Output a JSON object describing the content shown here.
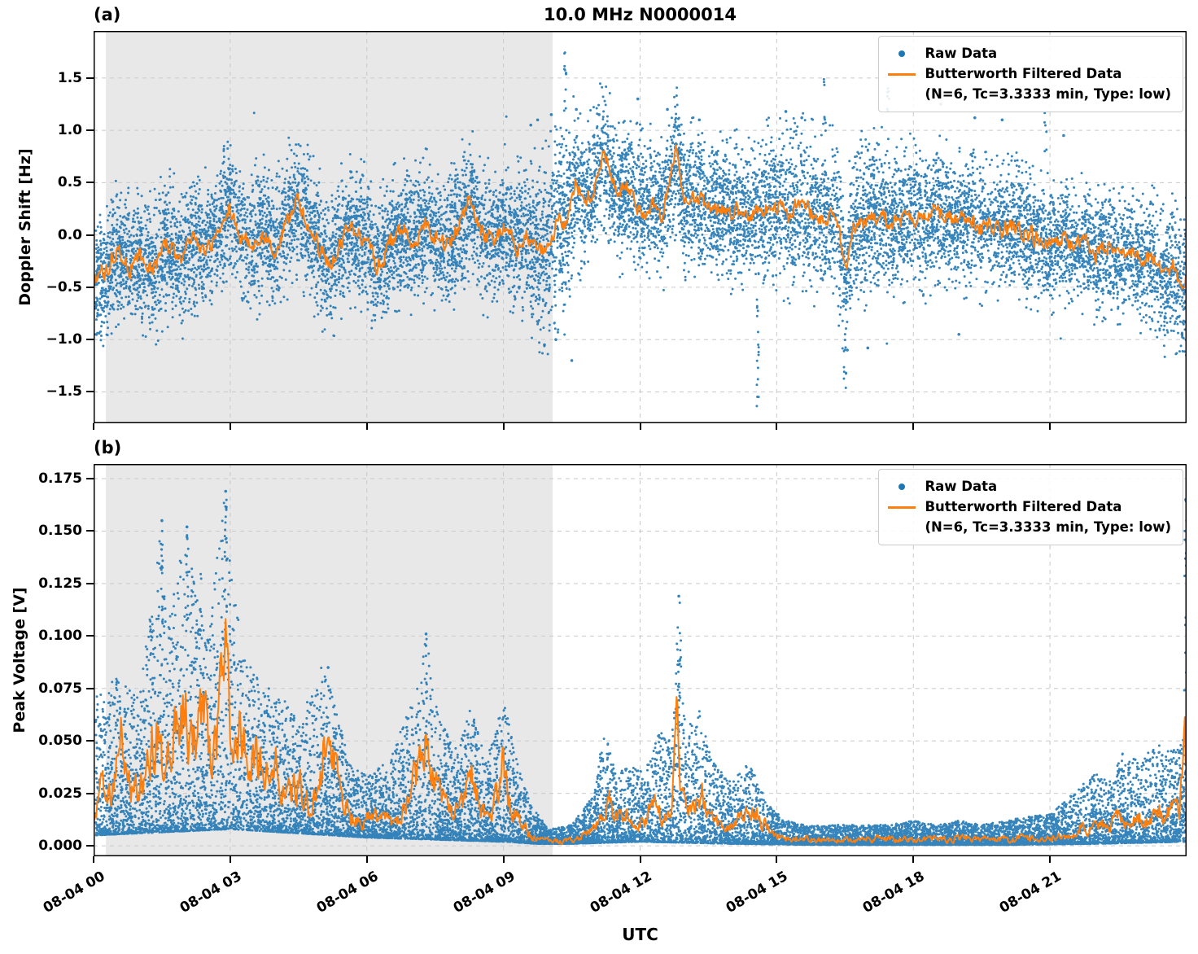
{
  "figure": {
    "xlabel": "UTC",
    "background": "#ffffff",
    "colors": {
      "raw": "#1f77b4",
      "filtered": "#ff7f0e",
      "shade": "#e8e8e8",
      "grid": "#c9c9c9",
      "spine": "#000000"
    }
  },
  "chart_data": [
    {
      "type": "scatter",
      "tag": "(a)",
      "title": "10.0 MHz N0000014",
      "ylabel": "Doppler Shift [Hz]",
      "ylim": [
        -1.8,
        1.95
      ],
      "xlim": [
        0,
        24
      ],
      "yticks": [
        1.5,
        1.0,
        0.5,
        0.0,
        -0.5,
        -1.0,
        -1.5
      ],
      "ytick_labels": [
        "1.5",
        "1.0",
        "0.5",
        "0.0",
        "−0.5",
        "−1.0",
        "−1.5"
      ],
      "xticks": [
        0,
        3,
        6,
        9,
        12,
        15,
        18,
        21
      ],
      "xtick_labels": [
        "08-04 00",
        "08-04 03",
        "08-04 06",
        "08-04 09",
        "08-04 12",
        "08-04 15",
        "08-04 18",
        "08-04 21"
      ],
      "grid": true,
      "shade_x": [
        0.27,
        10.08
      ],
      "legend": {
        "position": "upper right",
        "raw_label": "Raw Data",
        "filtered_label": "Butterworth Filtered Data",
        "filtered_sub": "(N=6, Tc=3.3333 min, Type: low)"
      },
      "filtered": {
        "x": [
          0,
          0.3,
          0.5,
          0.8,
          1.0,
          1.3,
          1.6,
          1.9,
          2.2,
          2.5,
          2.8,
          3.0,
          3.2,
          3.5,
          3.7,
          4.0,
          4.2,
          4.5,
          4.7,
          5.0,
          5.2,
          5.5,
          5.7,
          6.0,
          6.2,
          6.5,
          6.8,
          7.0,
          7.3,
          7.5,
          7.8,
          8.0,
          8.3,
          8.5,
          8.8,
          9.0,
          9.3,
          9.5,
          9.8,
          10.0,
          10.2,
          10.4,
          10.6,
          10.8,
          11.0,
          11.2,
          11.35,
          11.5,
          11.7,
          11.9,
          12.1,
          12.3,
          12.5,
          12.8,
          12.95,
          13.2,
          13.5,
          13.8,
          14.0,
          14.3,
          14.6,
          14.9,
          15.1,
          15.3,
          15.5,
          15.8,
          16.0,
          16.3,
          16.5,
          16.7,
          17.0,
          17.3,
          17.5,
          17.8,
          18.0,
          18.3,
          18.5,
          18.8,
          19.0,
          19.3,
          19.5,
          19.8,
          20.0,
          20.3,
          20.5,
          20.8,
          21.0,
          21.3,
          21.5,
          21.8,
          22.0,
          22.3,
          22.5,
          22.8,
          23.0,
          23.3,
          23.5,
          23.7,
          23.9,
          24.0
        ],
        "y": [
          -0.45,
          -0.35,
          -0.15,
          -0.3,
          -0.2,
          -0.35,
          -0.1,
          -0.25,
          -0.05,
          -0.15,
          0.1,
          0.25,
          0.0,
          -0.1,
          0.05,
          -0.15,
          0.1,
          0.3,
          0.1,
          -0.15,
          -0.3,
          0.0,
          0.05,
          -0.05,
          -0.3,
          -0.1,
          0.05,
          -0.05,
          0.1,
          0.0,
          -0.1,
          0.1,
          0.35,
          0.0,
          -0.05,
          0.1,
          -0.1,
          0.0,
          -0.15,
          -0.1,
          0.15,
          0.1,
          0.5,
          0.3,
          0.45,
          0.8,
          0.55,
          0.35,
          0.45,
          0.3,
          0.25,
          0.3,
          0.2,
          0.8,
          0.3,
          0.35,
          0.3,
          0.25,
          0.2,
          0.25,
          0.2,
          0.3,
          0.25,
          0.2,
          0.3,
          0.2,
          0.15,
          0.2,
          -0.35,
          0.1,
          0.15,
          0.2,
          0.1,
          0.15,
          0.2,
          0.1,
          0.25,
          0.15,
          0.1,
          0.15,
          0.05,
          0.1,
          0.05,
          0.1,
          0.0,
          -0.05,
          -0.1,
          0.0,
          -0.15,
          -0.05,
          -0.2,
          -0.1,
          -0.25,
          -0.15,
          -0.3,
          -0.2,
          -0.45,
          -0.3,
          -0.55,
          -0.35
        ]
      },
      "scatter_model": {
        "kind": "gauss",
        "n": 13000,
        "seed": 12345,
        "spread_x": [
          0,
          2,
          4,
          6,
          8,
          9,
          9.5,
          10,
          10.3,
          10.6,
          11,
          12,
          13,
          14,
          15,
          16,
          17,
          18,
          19,
          20,
          21,
          22,
          23,
          24
        ],
        "spread_y": [
          0.27,
          0.3,
          0.3,
          0.28,
          0.28,
          0.3,
          0.34,
          0.4,
          0.42,
          0.35,
          0.3,
          0.3,
          0.3,
          0.3,
          0.33,
          0.35,
          0.33,
          0.3,
          0.28,
          0.28,
          0.26,
          0.26,
          0.26,
          0.3
        ]
      },
      "columns": [
        {
          "x": 10.36,
          "y0": 0.8,
          "y1": 1.78,
          "n": 14
        },
        {
          "x": 14.58,
          "y0": -0.3,
          "y1": -1.65,
          "n": 18
        },
        {
          "x": 16.5,
          "y0": -0.2,
          "y1": -1.52,
          "n": 14
        },
        {
          "x": 16.05,
          "y0": 0.9,
          "y1": 1.54,
          "n": 8
        },
        {
          "x": 17.45,
          "y0": 0.9,
          "y1": 1.45,
          "n": 8
        },
        {
          "x": 20.9,
          "y0": 0.8,
          "y1": 1.28,
          "n": 6
        }
      ],
      "outliers": [
        [
          11.95,
          1.3
        ],
        [
          12.6,
          1.2
        ],
        [
          13.3,
          1.1
        ],
        [
          15.2,
          1.18
        ],
        [
          15.55,
          1.12
        ],
        [
          18.6,
          1.25
        ],
        [
          19.35,
          1.12
        ],
        [
          19.95,
          1.1
        ],
        [
          21.3,
          0.95
        ],
        [
          9.9,
          -1.05
        ],
        [
          10.15,
          -1.0
        ],
        [
          10.5,
          -1.2
        ],
        [
          17.0,
          -1.08
        ],
        [
          19.0,
          -0.95
        ],
        [
          16.55,
          -1.1
        ],
        [
          23.9,
          -0.95
        ],
        [
          9.6,
          1.05
        ],
        [
          9.75,
          1.1
        ],
        [
          10.05,
          1.15
        ],
        [
          10.6,
          1.2
        ],
        [
          11.1,
          1.15
        ]
      ]
    },
    {
      "type": "scatter",
      "tag": "(b)",
      "title": "",
      "ylabel": "Peak Voltage [V]",
      "ylim": [
        -0.005,
        0.182
      ],
      "xlim": [
        0,
        24
      ],
      "yticks": [
        0.175,
        0.15,
        0.125,
        0.1,
        0.075,
        0.05,
        0.025,
        0.0
      ],
      "ytick_labels": [
        "0.175",
        "0.150",
        "0.125",
        "0.100",
        "0.075",
        "0.050",
        "0.025",
        "0.000"
      ],
      "xticks": [
        0,
        3,
        6,
        9,
        12,
        15,
        18,
        21
      ],
      "xtick_labels": [
        "08-04 00",
        "08-04 03",
        "08-04 06",
        "08-04 09",
        "08-04 12",
        "08-04 15",
        "08-04 18",
        "08-04 21"
      ],
      "grid": true,
      "shade_x": [
        0.27,
        10.08
      ],
      "legend": {
        "position": "upper right",
        "raw_label": "Raw Data",
        "filtered_label": "Butterworth Filtered Data",
        "filtered_sub": "(N=6, Tc=3.3333 min, Type: low)"
      },
      "filtered": {
        "x": [
          0,
          0.2,
          0.4,
          0.6,
          0.8,
          1.0,
          1.2,
          1.4,
          1.5,
          1.7,
          1.9,
          2.0,
          2.1,
          2.3,
          2.4,
          2.5,
          2.7,
          2.9,
          3.0,
          3.1,
          3.2,
          3.4,
          3.5,
          3.7,
          3.9,
          4.1,
          4.3,
          4.5,
          4.7,
          4.9,
          5.1,
          5.3,
          5.5,
          5.7,
          5.9,
          6.1,
          6.3,
          6.5,
          6.7,
          6.9,
          7.1,
          7.3,
          7.5,
          7.7,
          7.9,
          8.1,
          8.3,
          8.5,
          8.7,
          8.9,
          9.0,
          9.1,
          9.3,
          9.5,
          9.7,
          10.0,
          10.3,
          10.6,
          10.8,
          11.0,
          11.2,
          11.35,
          11.5,
          11.7,
          11.9,
          12.1,
          12.3,
          12.5,
          12.7,
          12.8,
          12.9,
          13.0,
          13.2,
          13.35,
          13.5,
          13.7,
          13.9,
          14.1,
          14.3,
          14.5,
          14.7,
          14.9,
          15.1,
          15.3,
          15.5,
          15.8,
          16.1,
          16.4,
          16.7,
          17.0,
          17.3,
          17.6,
          17.9,
          18.2,
          18.5,
          18.8,
          19.1,
          19.4,
          19.7,
          20.0,
          20.3,
          20.6,
          20.9,
          21.2,
          21.5,
          21.7,
          21.9,
          22.1,
          22.3,
          22.5,
          22.7,
          22.9,
          23.1,
          23.3,
          23.5,
          23.7,
          23.85,
          23.95,
          24.0
        ],
        "y": [
          0.013,
          0.03,
          0.02,
          0.05,
          0.03,
          0.025,
          0.04,
          0.055,
          0.04,
          0.045,
          0.065,
          0.075,
          0.05,
          0.055,
          0.075,
          0.045,
          0.05,
          0.105,
          0.06,
          0.045,
          0.055,
          0.04,
          0.05,
          0.035,
          0.045,
          0.03,
          0.025,
          0.03,
          0.02,
          0.025,
          0.05,
          0.04,
          0.018,
          0.015,
          0.012,
          0.015,
          0.012,
          0.015,
          0.012,
          0.025,
          0.035,
          0.05,
          0.03,
          0.02,
          0.015,
          0.02,
          0.035,
          0.018,
          0.012,
          0.03,
          0.04,
          0.02,
          0.015,
          0.008,
          0.003,
          0.002,
          0.002,
          0.003,
          0.005,
          0.008,
          0.015,
          0.022,
          0.012,
          0.018,
          0.01,
          0.012,
          0.022,
          0.012,
          0.02,
          0.06,
          0.03,
          0.015,
          0.018,
          0.025,
          0.015,
          0.01,
          0.008,
          0.01,
          0.015,
          0.02,
          0.012,
          0.006,
          0.004,
          0.003,
          0.004,
          0.003,
          0.0025,
          0.003,
          0.0025,
          0.003,
          0.0035,
          0.003,
          0.0035,
          0.003,
          0.0035,
          0.003,
          0.0035,
          0.003,
          0.0035,
          0.003,
          0.004,
          0.0035,
          0.004,
          0.005,
          0.006,
          0.01,
          0.007,
          0.012,
          0.008,
          0.014,
          0.009,
          0.016,
          0.01,
          0.018,
          0.012,
          0.02,
          0.015,
          0.065,
          0.04
        ]
      },
      "scatter_model": {
        "kind": "skew",
        "n": 15000,
        "seed": 67890,
        "low_x": [
          0,
          3,
          6,
          9,
          9.7,
          10.5,
          12,
          14,
          16,
          20,
          22,
          24
        ],
        "low_y": [
          0.005,
          0.008,
          0.004,
          0.002,
          0.001,
          0.001,
          0.002,
          0.001,
          0.0005,
          0.0005,
          0.001,
          0.002
        ],
        "high_x": [
          0,
          0.5,
          1.0,
          1.4,
          1.5,
          1.6,
          2.0,
          2.2,
          2.5,
          2.9,
          3.1,
          3.3,
          3.6,
          4.0,
          4.5,
          5.0,
          5.3,
          5.6,
          6.0,
          6.5,
          7.0,
          7.3,
          7.6,
          8.0,
          8.3,
          8.6,
          9.0,
          9.3,
          9.6,
          10.0,
          10.5,
          11.0,
          11.2,
          11.5,
          11.8,
          12.1,
          12.4,
          12.7,
          12.85,
          13.0,
          13.3,
          13.6,
          14.0,
          14.4,
          14.8,
          15.2,
          15.6,
          16.0,
          16.5,
          17.0,
          17.5,
          18.0,
          18.5,
          19.0,
          19.5,
          20.0,
          20.5,
          21.0,
          21.5,
          22.0,
          22.3,
          22.6,
          23.0,
          23.3,
          23.6,
          23.9,
          24.0
        ],
        "high_y": [
          0.07,
          0.08,
          0.07,
          0.14,
          0.155,
          0.1,
          0.15,
          0.13,
          0.1,
          0.17,
          0.12,
          0.09,
          0.08,
          0.075,
          0.06,
          0.085,
          0.07,
          0.04,
          0.035,
          0.04,
          0.07,
          0.1,
          0.06,
          0.045,
          0.07,
          0.04,
          0.07,
          0.04,
          0.02,
          0.008,
          0.01,
          0.025,
          0.055,
          0.035,
          0.04,
          0.035,
          0.055,
          0.05,
          0.12,
          0.06,
          0.065,
          0.04,
          0.03,
          0.04,
          0.02,
          0.012,
          0.01,
          0.01,
          0.01,
          0.01,
          0.01,
          0.012,
          0.01,
          0.012,
          0.01,
          0.012,
          0.014,
          0.015,
          0.025,
          0.035,
          0.03,
          0.045,
          0.04,
          0.05,
          0.045,
          0.05,
          0.06
        ]
      },
      "columns": [
        {
          "x": 2.9,
          "y0": 0.1,
          "y1": 0.169,
          "n": 14
        },
        {
          "x": 1.5,
          "y0": 0.09,
          "y1": 0.155,
          "n": 10
        },
        {
          "x": 2.05,
          "y0": 0.09,
          "y1": 0.152,
          "n": 12
        },
        {
          "x": 2.35,
          "y0": 0.08,
          "y1": 0.13,
          "n": 8
        },
        {
          "x": 12.85,
          "y0": 0.05,
          "y1": 0.119,
          "n": 12
        },
        {
          "x": 7.3,
          "y0": 0.06,
          "y1": 0.101,
          "n": 8
        },
        {
          "x": 23.97,
          "y0": 0.05,
          "y1": 0.165,
          "n": 16
        }
      ],
      "outliers": [
        [
          2.9,
          0.169
        ],
        [
          2.05,
          0.152
        ],
        [
          1.5,
          0.155
        ],
        [
          12.85,
          0.119
        ],
        [
          23.98,
          0.165
        ],
        [
          7.3,
          0.101
        ],
        [
          5.15,
          0.085
        ]
      ]
    }
  ]
}
